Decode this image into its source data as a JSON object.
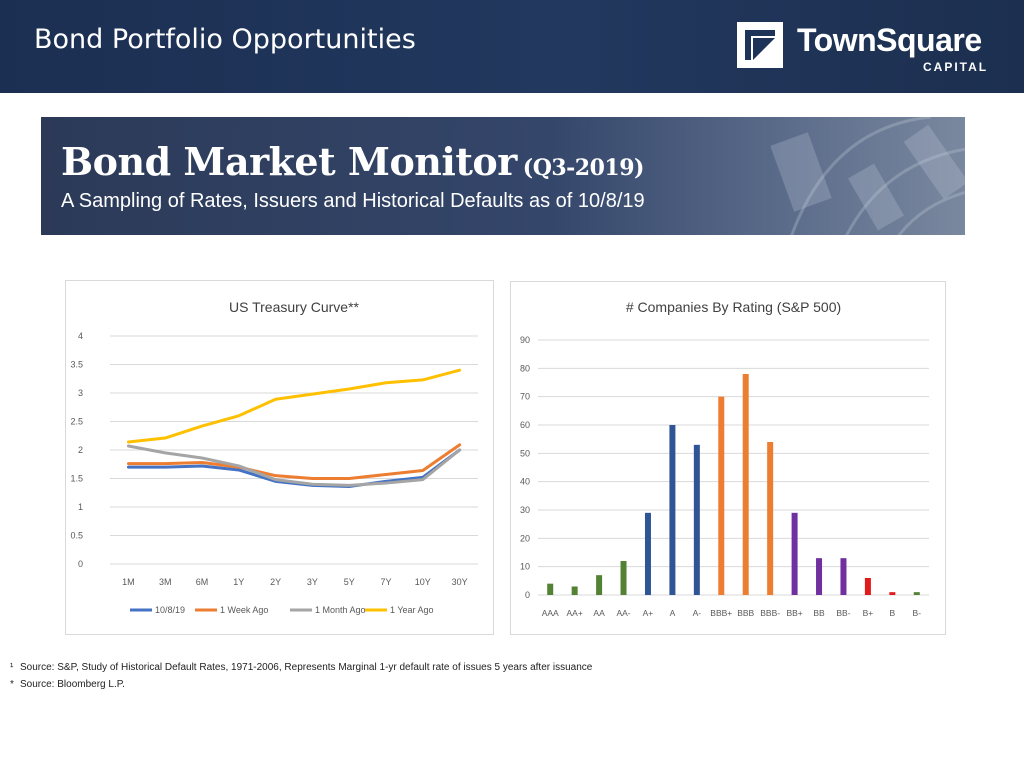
{
  "slide": {
    "title": "Bond Portfolio Opportunities",
    "logo": {
      "name": "TownSquare",
      "sub": "CAPITAL"
    }
  },
  "banner": {
    "title": "Bond Market Monitor",
    "title_suffix": "(Q3-2019)",
    "subtitle": "A Sampling of Rates, Issuers and Historical Defaults as of 10/8/19"
  },
  "footnotes": [
    {
      "mark": "¹",
      "text": "Source:  S&P, Study of Historical Default Rates, 1971-2006, Represents Marginal 1-yr default rate of issues 5 years after issuance"
    },
    {
      "mark": "*",
      "text": "Source:  Bloomberg L.P."
    }
  ],
  "chart_data": [
    {
      "type": "line",
      "title": "US Treasury Curve**",
      "xlabel": "",
      "ylabel": "",
      "categories": [
        "1M",
        "3M",
        "6M",
        "1Y",
        "2Y",
        "3Y",
        "5Y",
        "7Y",
        "10Y",
        "30Y"
      ],
      "ylim": [
        0,
        4
      ],
      "yticks": [
        "0",
        "0.5",
        "1",
        "1.5",
        "2",
        "2.5",
        "3",
        "3.5",
        "4"
      ],
      "grid": true,
      "legend_position": "bottom",
      "series": [
        {
          "name": "10/8/19",
          "color": "#4472c4",
          "values": [
            1.7,
            1.7,
            1.72,
            1.65,
            1.45,
            1.38,
            1.36,
            1.45,
            1.52,
            2.0
          ]
        },
        {
          "name": "1 Week Ago",
          "color": "#ed7d31",
          "values": [
            1.76,
            1.76,
            1.78,
            1.7,
            1.55,
            1.5,
            1.5,
            1.57,
            1.64,
            2.09
          ]
        },
        {
          "name": "1 Month Ago",
          "color": "#a5a5a5",
          "values": [
            2.07,
            1.95,
            1.86,
            1.72,
            1.48,
            1.4,
            1.38,
            1.42,
            1.48,
            2.0
          ]
        },
        {
          "name": "1 Year Ago",
          "color": "#ffc000",
          "values": [
            2.14,
            2.21,
            2.42,
            2.6,
            2.89,
            2.98,
            3.07,
            3.18,
            3.23,
            3.4
          ]
        }
      ]
    },
    {
      "type": "bar",
      "title": "# Companies By Rating (S&P 500)",
      "xlabel": "",
      "ylabel": "",
      "categories": [
        "AAA",
        "AA+",
        "AA",
        "AA-",
        "A+",
        "A",
        "A-",
        "BBB+",
        "BBB",
        "BBB-",
        "BB+",
        "BB",
        "BB-",
        "B+",
        "B",
        "B-"
      ],
      "values": [
        4,
        3,
        7,
        12,
        29,
        60,
        53,
        70,
        78,
        54,
        29,
        13,
        13,
        6,
        1,
        1
      ],
      "colors": [
        "#548235",
        "#548235",
        "#548235",
        "#548235",
        "#2f5597",
        "#2f5597",
        "#2f5597",
        "#ed7d31",
        "#ed7d31",
        "#ed7d31",
        "#7030a0",
        "#7030a0",
        "#7030a0",
        "#e31a1c",
        "#e31a1c",
        "#548235"
      ],
      "ylim": [
        0,
        90
      ],
      "yticks": [
        "0",
        "10",
        "20",
        "30",
        "40",
        "50",
        "60",
        "70",
        "80",
        "90"
      ],
      "grid": true
    }
  ]
}
